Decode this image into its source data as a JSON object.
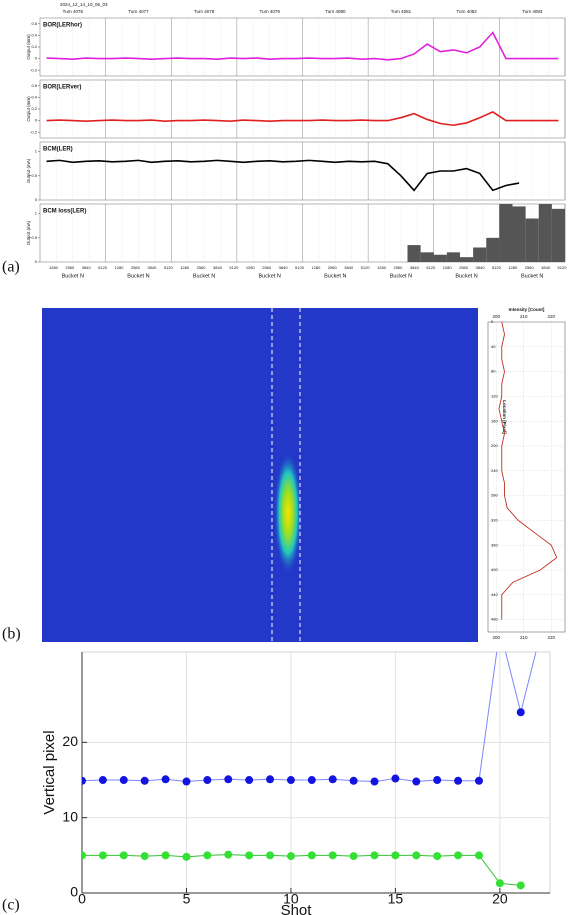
{
  "panel_labels": [
    "(a)",
    "(b)",
    "(c)"
  ],
  "chart_data": [
    {
      "type": "strip",
      "timestamp": "2024_12_14_10_06_03",
      "turns": [
        "Turn 4076",
        "Turn 4077",
        "Turn 4078",
        "Turn 4079",
        "Turn 4080",
        "Turn 4081",
        "Turn 4082",
        "Turn 4083"
      ],
      "xlim": [
        0,
        5120
      ],
      "xticks": [
        1280,
        2560,
        3840,
        5120
      ],
      "xlabel": "Bucket N",
      "panels": [
        {
          "title": "BOR(LERhor)",
          "ylabel": "Output (mm)",
          "mark": "line",
          "color": "#e020e0",
          "ylim": [
            -0.3,
            0.7
          ],
          "yticks": [
            -0.2,
            0,
            0.2,
            0.4,
            0.6
          ],
          "values": [
            0.01,
            0,
            -0.01,
            0.01,
            0,
            0,
            0.01,
            0,
            -0.01,
            0,
            0.01,
            0,
            0,
            -0.01,
            0.01,
            0,
            0.01,
            -0.01,
            0,
            0,
            0.01,
            0,
            0,
            0.01,
            -0.01,
            0,
            -0.02,
            0,
            0.08,
            0.25,
            0.12,
            0.15,
            0.1,
            0.2,
            0.45,
            0,
            0,
            0,
            0,
            0
          ]
        },
        {
          "title": "BOR(LERver)",
          "ylabel": "Output (mm)",
          "mark": "line",
          "color": "#e02020",
          "ylim": [
            -0.3,
            0.7
          ],
          "yticks": [
            -0.2,
            0,
            0.2,
            0.4,
            0.6
          ],
          "values": [
            0,
            0.01,
            0,
            -0.01,
            0,
            0.01,
            0,
            0,
            0.01,
            -0.01,
            0,
            0,
            0.01,
            0,
            -0.01,
            0.01,
            0,
            -0.01,
            0,
            0,
            0,
            0.01,
            0,
            0,
            0.01,
            0,
            0,
            0.05,
            0.12,
            0.02,
            -0.05,
            -0.08,
            -0.04,
            0.05,
            0.15,
            0,
            0,
            0,
            0,
            0
          ]
        },
        {
          "title": "BCM(LER)",
          "ylabel": "Output (mA)",
          "mark": "line",
          "color": "#000000",
          "ylim": [
            0,
            1.2
          ],
          "yticks": [
            0,
            0.5,
            1
          ],
          "values": [
            0.8,
            0.82,
            0.78,
            0.8,
            0.81,
            0.79,
            0.8,
            0.82,
            0.78,
            0.8,
            0.81,
            0.79,
            0.8,
            0.82,
            0.8,
            0.78,
            0.8,
            0.81,
            0.79,
            0.8,
            0.82,
            0.8,
            0.78,
            0.8,
            0.79,
            0.8,
            0.75,
            0.5,
            0.2,
            0.55,
            0.6,
            0.6,
            0.65,
            0.55,
            0.2,
            0.3,
            0.35,
            null,
            null,
            null
          ]
        },
        {
          "title": "BCM loss(LER)",
          "ylabel": "Output (mA)",
          "mark": "bar",
          "color": "#555555",
          "ylim": [
            0,
            1.2
          ],
          "yticks": [
            0,
            0.5,
            1
          ],
          "values": [
            0,
            0,
            0,
            0,
            0,
            0,
            0,
            0,
            0,
            0,
            0,
            0,
            0,
            0,
            0,
            0,
            0,
            0,
            0,
            0,
            0,
            0,
            0,
            0,
            0,
            0,
            0,
            0,
            0.35,
            0.2,
            0.15,
            0.2,
            0.1,
            0.3,
            0.5,
            1.2,
            1.15,
            0.9,
            1.2,
            1.1
          ]
        }
      ]
    },
    {
      "type": "image-profile",
      "xlabel": "Intensity [Count]",
      "ylabel": "Location [Pixel]",
      "color": "#c03020",
      "xlim": [
        197,
        225
      ],
      "xticks": [
        200,
        210,
        220
      ],
      "ylim": [
        0,
        500
      ],
      "yticks": [
        0,
        40,
        80,
        120,
        160,
        200,
        240,
        280,
        320,
        360,
        400,
        440,
        480
      ],
      "x": [
        0,
        20,
        40,
        60,
        80,
        100,
        120,
        140,
        160,
        180,
        200,
        220,
        240,
        260,
        280,
        300,
        320,
        340,
        360,
        380,
        400,
        420,
        440,
        460,
        480
      ],
      "values": [
        202,
        203,
        202,
        202,
        203,
        202,
        202,
        201,
        202,
        203,
        202,
        202,
        202,
        203,
        203,
        204,
        208,
        214,
        220,
        222,
        216,
        206,
        202,
        202,
        202
      ]
    },
    {
      "type": "line",
      "xlabel": "Shot",
      "ylabel": "Vertical pixel",
      "grid": true,
      "xlim": [
        0,
        22.4
      ],
      "ylim": [
        0,
        32
      ],
      "xticks": [
        0,
        5,
        10,
        15,
        20
      ],
      "yticks": [
        0,
        10,
        20
      ],
      "x": [
        0,
        1,
        2,
        3,
        4,
        5,
        6,
        7,
        8,
        9,
        10,
        11,
        12,
        13,
        14,
        15,
        16,
        17,
        18,
        19,
        20,
        21,
        22
      ],
      "series": [
        {
          "color": "#1414e0",
          "line_color": "#7a88ff",
          "values": [
            14.9,
            15,
            15,
            14.9,
            15.1,
            14.8,
            15,
            15.1,
            15,
            15.1,
            15,
            15,
            15.1,
            14.9,
            14.8,
            15.2,
            14.8,
            15,
            14.9,
            14.9,
            35,
            24,
            35
          ]
        },
        {
          "color": "#33e033",
          "line_color": "#33c033",
          "values": [
            5,
            5,
            5,
            4.9,
            5,
            4.8,
            5,
            5.1,
            5,
            5,
            4.9,
            5,
            5,
            4.9,
            5,
            5,
            5,
            4.9,
            5,
            5,
            1.3,
            1.0,
            null
          ]
        }
      ]
    }
  ]
}
